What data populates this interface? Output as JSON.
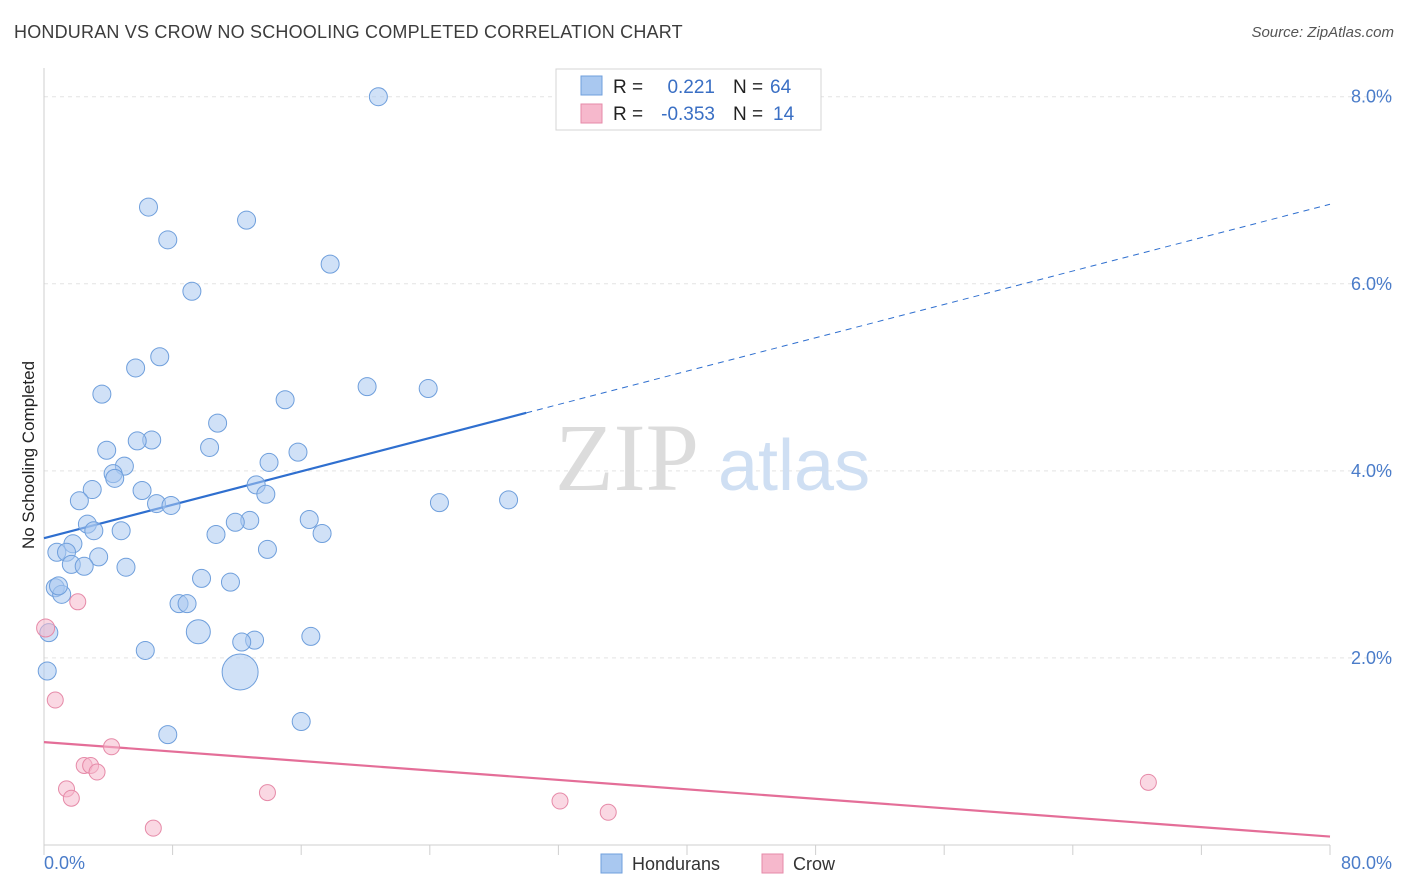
{
  "header": {
    "title": "HONDURAN VS CROW NO SCHOOLING COMPLETED CORRELATION CHART",
    "source": "Source: ZipAtlas.com"
  },
  "watermark": {
    "zip": "ZIP",
    "atlas": "atlas"
  },
  "legend_box": {
    "rows": [
      {
        "r_label": "R =",
        "r_value": "0.221",
        "n_label": "N =",
        "n_value": "64",
        "color": "#a9c8f0"
      },
      {
        "r_label": "R =",
        "r_value": "-0.353",
        "n_label": "N =",
        "n_value": "14",
        "color": "#f6b8cc"
      }
    ]
  },
  "chart_data": {
    "type": "scatter",
    "title": "HONDURAN VS CROW NO SCHOOLING COMPLETED CORRELATION CHART",
    "xlabel": "",
    "ylabel": "No Schooling Completed",
    "xlim": [
      0,
      80
    ],
    "ylim": [
      0,
      8.2
    ],
    "x_tick_labels": [
      "0.0%",
      "80.0%"
    ],
    "y_ticks": [
      2,
      4,
      6,
      8
    ],
    "y_tick_labels": [
      "2.0%",
      "4.0%",
      "6.0%",
      "8.0%"
    ],
    "grid": true,
    "legend_position": "bottom",
    "series": [
      {
        "name": "Hondurans",
        "color": "#a9c8f0",
        "stroke": "#6f9fdc",
        "r": 0.221,
        "n": 64,
        "trend": {
          "x": [
            0,
            30
          ],
          "y": [
            3.28,
            4.62
          ],
          "dashed_to": [
            80,
            6.85
          ],
          "color": "#2f6fcf"
        },
        "points": [
          [
            20.8,
            8.0
          ],
          [
            6.5,
            6.82
          ],
          [
            7.7,
            6.47
          ],
          [
            12.6,
            6.68
          ],
          [
            17.8,
            6.21
          ],
          [
            9.2,
            5.92
          ],
          [
            7.2,
            5.22
          ],
          [
            5.7,
            5.1
          ],
          [
            3.6,
            4.82
          ],
          [
            20.1,
            4.9
          ],
          [
            23.9,
            4.88
          ],
          [
            15.0,
            4.76
          ],
          [
            10.8,
            4.51
          ],
          [
            6.7,
            4.33
          ],
          [
            5.8,
            4.32
          ],
          [
            10.3,
            4.25
          ],
          [
            3.9,
            4.22
          ],
          [
            15.8,
            4.2
          ],
          [
            5.0,
            4.05
          ],
          [
            14.0,
            4.09
          ],
          [
            4.3,
            3.97
          ],
          [
            4.4,
            3.92
          ],
          [
            13.2,
            3.85
          ],
          [
            3.0,
            3.8
          ],
          [
            6.1,
            3.79
          ],
          [
            13.8,
            3.75
          ],
          [
            2.2,
            3.68
          ],
          [
            7.0,
            3.65
          ],
          [
            7.9,
            3.63
          ],
          [
            24.6,
            3.66
          ],
          [
            28.9,
            3.69
          ],
          [
            12.8,
            3.47
          ],
          [
            11.9,
            3.45
          ],
          [
            16.5,
            3.48
          ],
          [
            2.7,
            3.43
          ],
          [
            3.1,
            3.36
          ],
          [
            4.8,
            3.36
          ],
          [
            17.3,
            3.33
          ],
          [
            10.7,
            3.32
          ],
          [
            1.8,
            3.22
          ],
          [
            0.8,
            3.13
          ],
          [
            1.4,
            3.13
          ],
          [
            13.9,
            3.16
          ],
          [
            3.4,
            3.08
          ],
          [
            1.7,
            3.0
          ],
          [
            2.5,
            2.98
          ],
          [
            5.1,
            2.97
          ],
          [
            9.8,
            2.85
          ],
          [
            11.6,
            2.81
          ],
          [
            0.7,
            2.75
          ],
          [
            1.1,
            2.68
          ],
          [
            8.4,
            2.58
          ],
          [
            8.9,
            2.58
          ],
          [
            0.3,
            2.27
          ],
          [
            9.6,
            2.28
          ],
          [
            16.6,
            2.23
          ],
          [
            13.1,
            2.19
          ],
          [
            12.3,
            2.17
          ],
          [
            6.3,
            2.08
          ],
          [
            0.2,
            1.86
          ],
          [
            12.2,
            1.85
          ],
          [
            16.0,
            1.32
          ],
          [
            7.7,
            1.18
          ],
          [
            0.9,
            2.77
          ]
        ],
        "sizes": [
          9,
          9,
          9,
          9,
          9,
          9,
          9,
          9,
          9,
          9,
          9,
          9,
          9,
          9,
          9,
          9,
          9,
          9,
          9,
          9,
          9,
          9,
          9,
          9,
          9,
          9,
          9,
          9,
          9,
          9,
          9,
          9,
          9,
          9,
          9,
          9,
          9,
          9,
          9,
          9,
          9,
          9,
          9,
          9,
          9,
          9,
          9,
          9,
          9,
          9,
          9,
          9,
          9,
          9,
          12,
          9,
          9,
          9,
          9,
          9,
          18,
          9,
          9,
          9
        ]
      },
      {
        "name": "Crow",
        "color": "#f6b8cc",
        "stroke": "#e68aa8",
        "r": -0.353,
        "n": 14,
        "trend": {
          "x": [
            0,
            80
          ],
          "y": [
            1.1,
            0.09
          ],
          "color": "#e46e98"
        },
        "points": [
          [
            0.1,
            2.32
          ],
          [
            2.1,
            2.6
          ],
          [
            0.7,
            1.55
          ],
          [
            4.2,
            1.05
          ],
          [
            1.4,
            0.6
          ],
          [
            2.5,
            0.85
          ],
          [
            2.9,
            0.85
          ],
          [
            3.3,
            0.78
          ],
          [
            1.7,
            0.5
          ],
          [
            13.9,
            0.56
          ],
          [
            6.8,
            0.18
          ],
          [
            32.1,
            0.47
          ],
          [
            35.1,
            0.35
          ],
          [
            68.7,
            0.67
          ]
        ],
        "sizes": [
          9,
          8,
          8,
          8,
          8,
          8,
          8,
          8,
          8,
          8,
          8,
          8,
          8,
          8
        ]
      }
    ]
  }
}
